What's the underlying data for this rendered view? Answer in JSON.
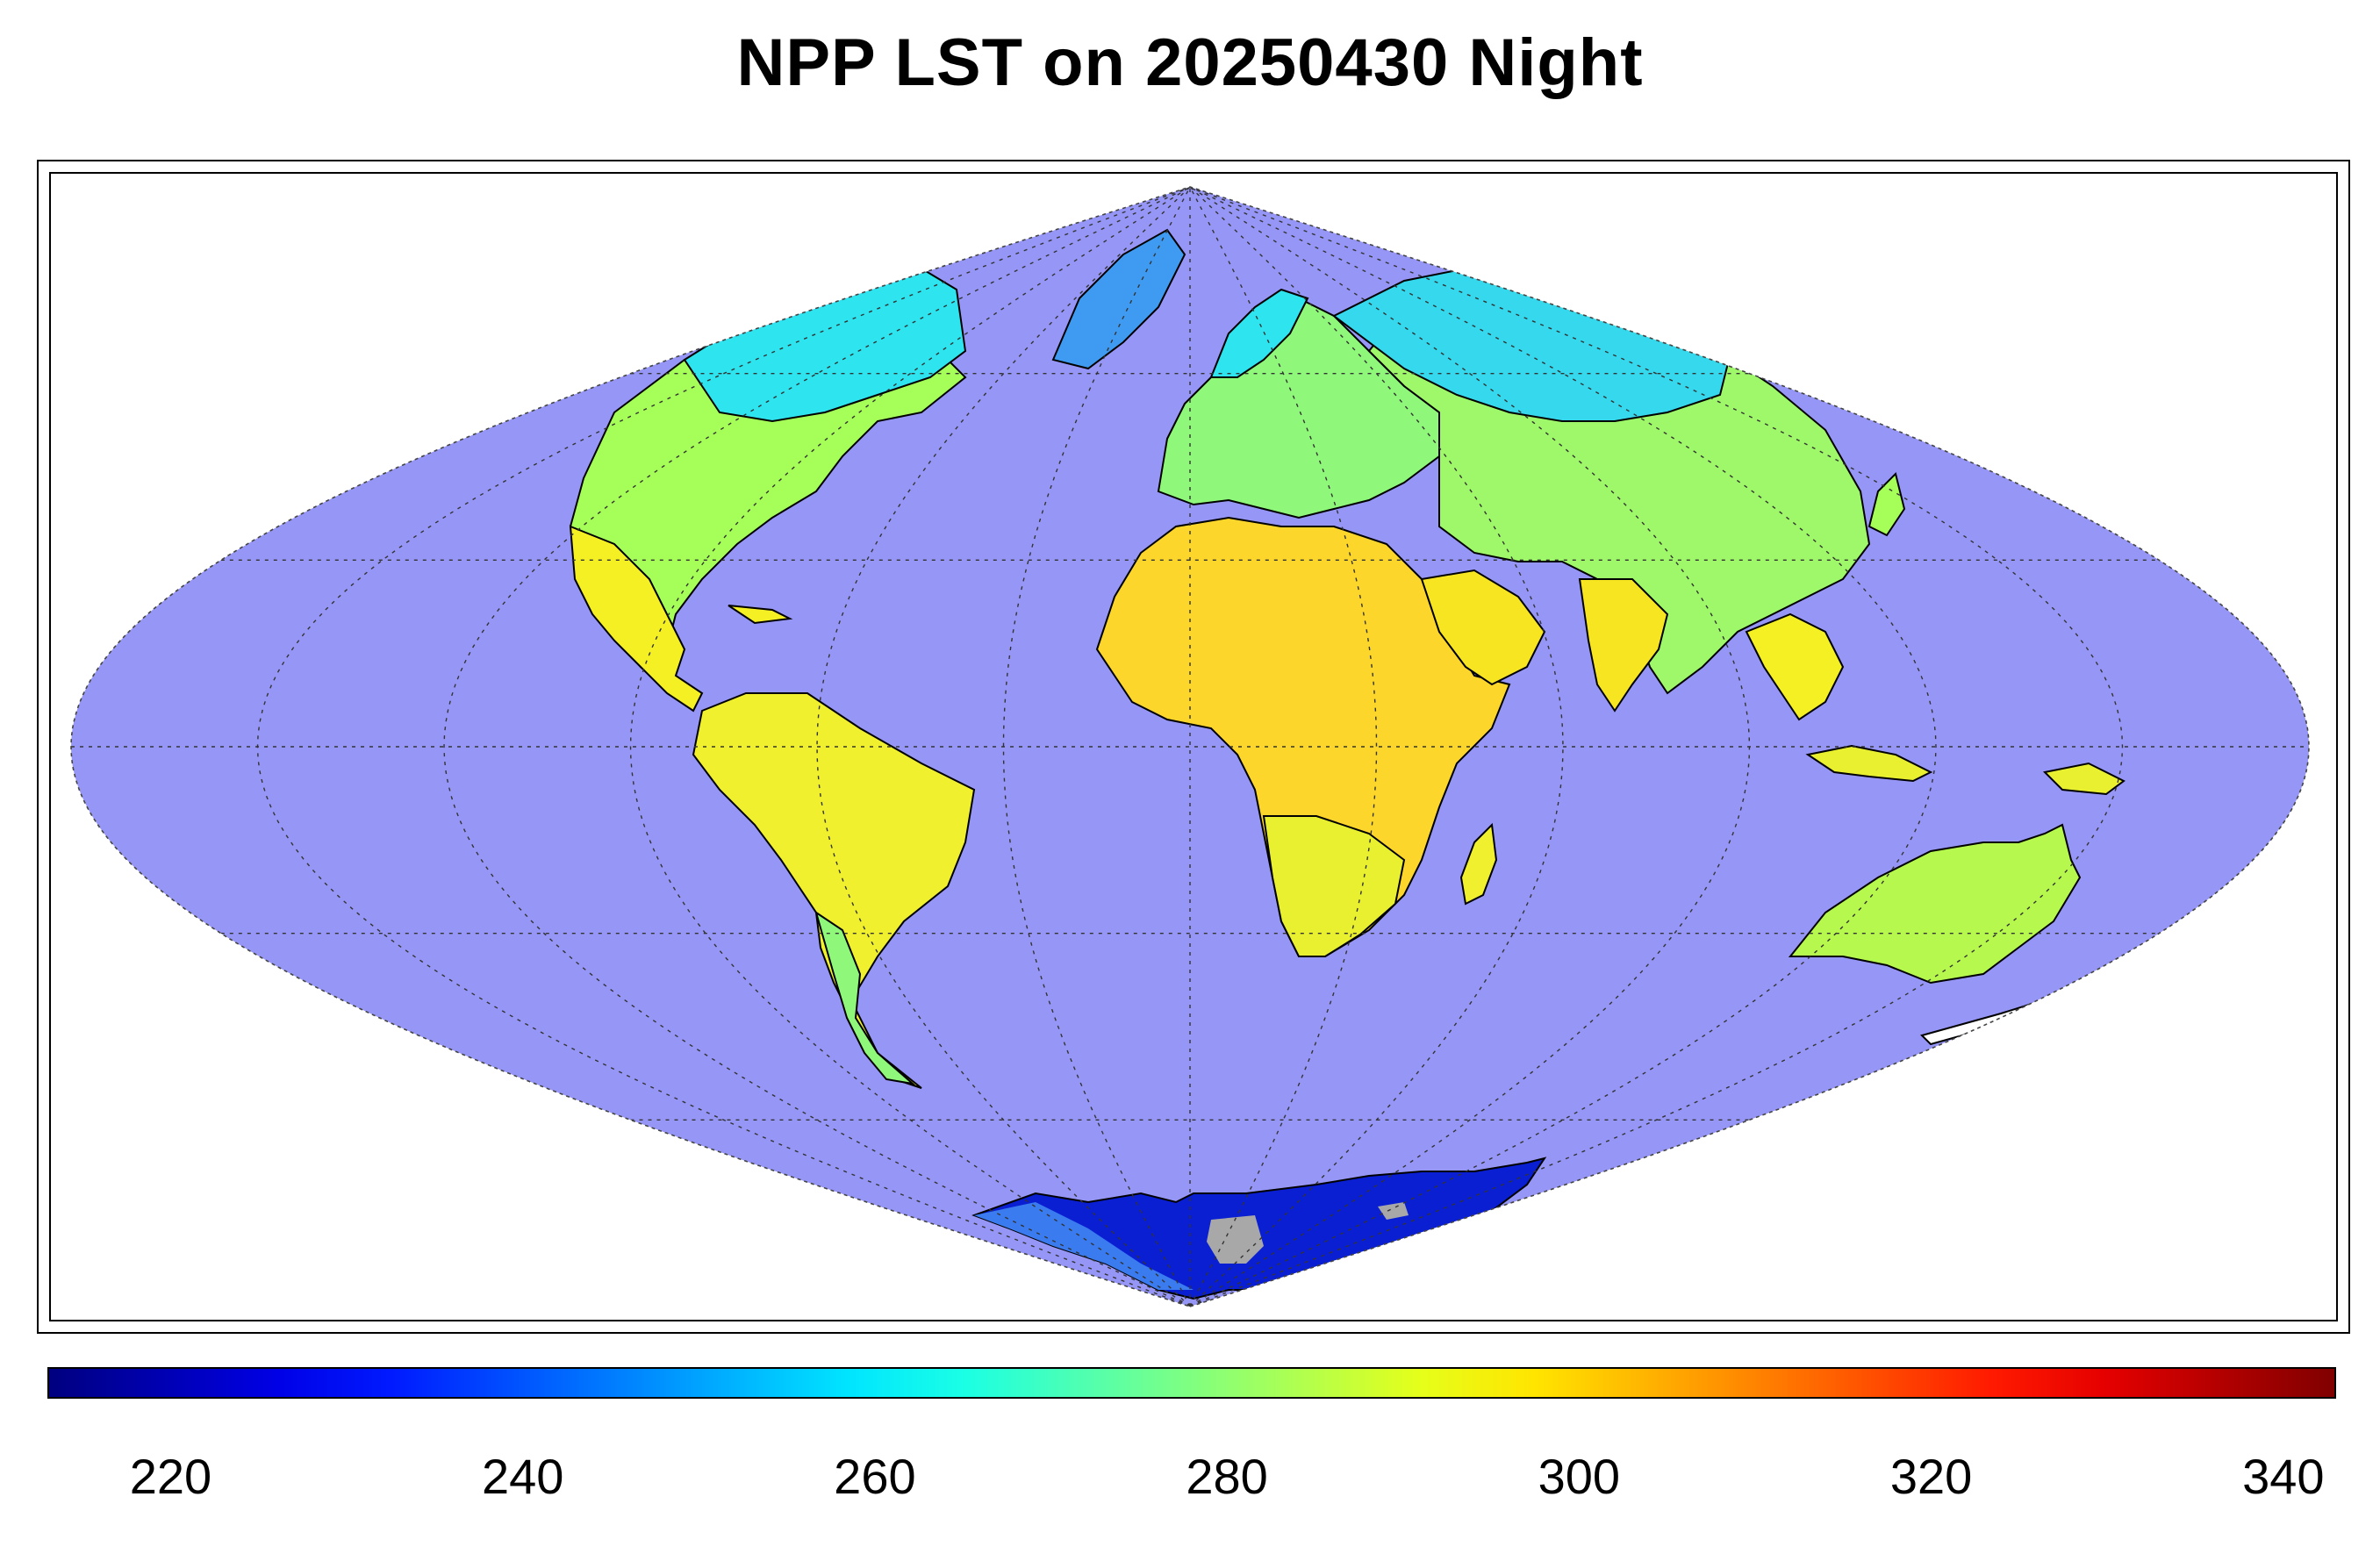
{
  "title": "NPP LST on 20250430 Night",
  "colors": {
    "ocean": "#9696f7",
    "no_data": "#a8a8a8",
    "coastline": "#000000"
  },
  "colorbar": {
    "min": 213,
    "max": 343,
    "colormap": "jet",
    "tick_labels": [
      "220",
      "240",
      "260",
      "280",
      "300",
      "320",
      "340"
    ],
    "tick_values": [
      220,
      240,
      260,
      280,
      300,
      320,
      340
    ]
  },
  "map": {
    "projection": "sinusoidal",
    "graticule": "dashed",
    "meridian_step_deg": 30,
    "parallel_step_deg": 30
  }
}
